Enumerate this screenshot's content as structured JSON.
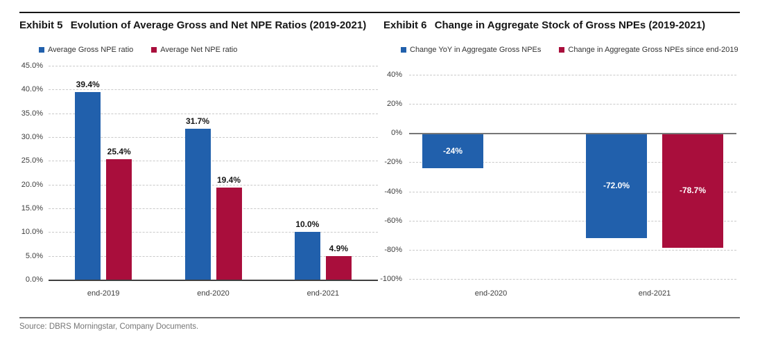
{
  "page": {
    "source": "Source: DBRS Morningstar, Company Documents."
  },
  "exhibits": [
    {
      "label": "Exhibit 5",
      "title": "Evolution of Average Gross and Net NPE Ratios (2019-2021)",
      "legend": [
        {
          "label": "Average Gross NPE ratio",
          "color": "#2160ac"
        },
        {
          "label": "Average Net NPE ratio",
          "color": "#a90e3c"
        }
      ]
    },
    {
      "label": "Exhibit 6",
      "title": "Change in Aggregate Stock of Gross NPEs (2019-2021)",
      "legend": [
        {
          "label": "Change YoY in Aggregate Gross NPEs",
          "color": "#2160ac"
        },
        {
          "label": "Change in Aggregate Gross NPEs since end-2019",
          "color": "#a90e3c"
        }
      ]
    }
  ],
  "chart_data": [
    {
      "type": "bar",
      "title": "Exhibit 5 Evolution of Average Gross and Net NPE Ratios (2019-2021)",
      "categories": [
        "end-2019",
        "end-2020",
        "end-2021"
      ],
      "series": [
        {
          "name": "Average Gross NPE ratio",
          "color": "#2160ac",
          "values": [
            39.4,
            31.7,
            10.0
          ],
          "labels": [
            "39.4%",
            "31.7%",
            "10.0%"
          ]
        },
        {
          "name": "Average Net NPE ratio",
          "color": "#a90e3c",
          "values": [
            25.4,
            19.4,
            4.9
          ],
          "labels": [
            "25.4%",
            "19.4%",
            "4.9%"
          ]
        }
      ],
      "xlabel": "",
      "ylabel": "",
      "ylim": [
        0,
        45
      ],
      "ytick_values": [
        45,
        40,
        35,
        30,
        25,
        20,
        15,
        10,
        5,
        0
      ],
      "ytick_labels": [
        "45.0%",
        "40.0%",
        "35.0%",
        "30.0%",
        "25.0%",
        "20.0%",
        "15.0%",
        "10.0%",
        "5.0%",
        "0.0%"
      ],
      "value_label_position": "above",
      "grid": true,
      "legend_position": "top"
    },
    {
      "type": "bar",
      "title": "Exhibit 6 Change in Aggregate Stock of Gross NPEs (2019-2021)",
      "categories": [
        "end-2020",
        "end-2021"
      ],
      "series": [
        {
          "name": "Change YoY in Aggregate Gross NPEs",
          "color": "#2160ac",
          "values": [
            -24,
            -72.0
          ],
          "labels": [
            "-24%",
            "-72.0%"
          ]
        },
        {
          "name": "Change in Aggregate Gross NPEs since end-2019",
          "color": "#a90e3c",
          "values": [
            null,
            -78.7
          ],
          "labels": [
            null,
            "-78.7%"
          ]
        }
      ],
      "xlabel": "",
      "ylabel": "",
      "ylim": [
        -100,
        40
      ],
      "ytick_values": [
        40,
        20,
        0,
        -20,
        -40,
        -60,
        -80,
        -100
      ],
      "ytick_labels": [
        "40%",
        "20%",
        "0%",
        "-20%",
        "-40%",
        "-60%",
        "-80%",
        "-100%"
      ],
      "value_label_position": "inside",
      "grid": true,
      "legend_position": "top"
    }
  ]
}
